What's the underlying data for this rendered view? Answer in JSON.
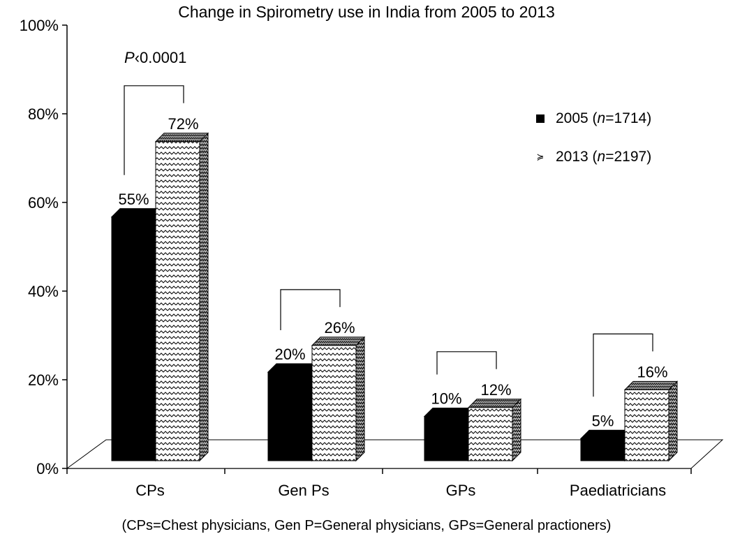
{
  "chart_data": {
    "type": "bar",
    "title": "Change in Spirometry use in India from 2005 to 2013",
    "categories": [
      "CPs",
      "Gen Ps",
      "GPs",
      "Paediatricians"
    ],
    "series": [
      {
        "name": "2005 (n=1714)",
        "name_prefix": "2005 (",
        "name_italic": "n",
        "name_suffix": "=1714)",
        "values": [
          55,
          20,
          10,
          5
        ],
        "labels": [
          "55%",
          "20%",
          "10%",
          "5%"
        ],
        "color": "#000000"
      },
      {
        "name": "2013 (n=2197)",
        "name_prefix": "2013 (",
        "name_italic": "n",
        "name_suffix": "=2197)",
        "values": [
          72,
          26,
          12,
          16
        ],
        "labels": [
          "72%",
          "26%",
          "12%",
          "16%"
        ],
        "color": "#ffffff",
        "pattern": "zigzag"
      }
    ],
    "yticks": [
      "0%",
      "20%",
      "40%",
      "60%",
      "80%",
      "100%"
    ],
    "ylim": [
      0,
      100
    ],
    "legend_position": "top-right",
    "annotation": {
      "italic": "P",
      "text": "‹0.0001"
    },
    "footnote": "(CPs=Chest physicians, Gen P=General physicians, GPs=General practioners)"
  }
}
